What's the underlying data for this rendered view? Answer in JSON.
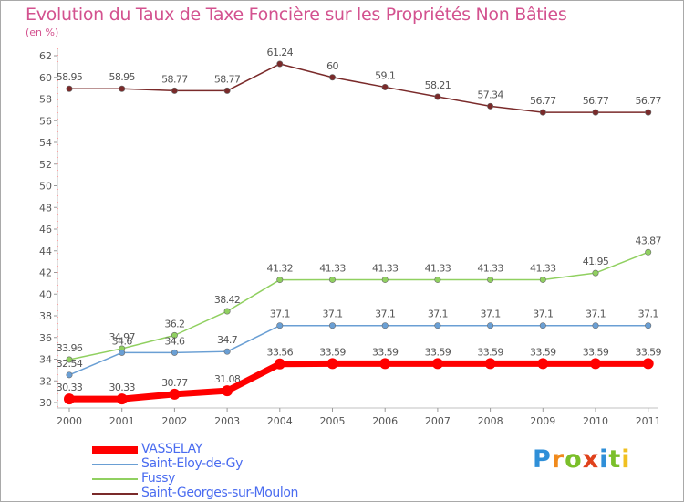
{
  "chart_data": {
    "type": "line",
    "title": "Evolution du Taux de Taxe Foncière sur les Propriétés Non Bâties",
    "subtitle": "(en %)",
    "xlabel": "",
    "ylabel": "",
    "categories": [
      "2000",
      "2001",
      "2002",
      "2003",
      "2004",
      "2005",
      "2006",
      "2007",
      "2008",
      "2009",
      "2010",
      "2011"
    ],
    "ylim": [
      30,
      62
    ],
    "yticks": [
      30,
      32,
      34,
      36,
      38,
      40,
      42,
      44,
      46,
      48,
      50,
      52,
      54,
      56,
      58,
      60,
      62
    ],
    "grid": false,
    "legend_position": "bottom-left",
    "series": [
      {
        "name": "VASSELAY",
        "color": "#ff0000",
        "values": [
          30.33,
          30.33,
          30.77,
          31.08,
          33.56,
          33.59,
          33.59,
          33.59,
          33.59,
          33.59,
          33.59,
          33.59
        ],
        "labels": [
          "30.33",
          "30.33",
          "30.77",
          "31.08",
          "33.56",
          "33.59",
          "33.59",
          "33.59",
          "33.59",
          "33.59",
          "33.59",
          "33.59"
        ]
      },
      {
        "name": "Saint-Eloy-de-Gy",
        "color": "#6a9fd4",
        "values": [
          32.54,
          34.6,
          34.6,
          34.7,
          37.1,
          37.1,
          37.1,
          37.1,
          37.1,
          37.1,
          37.1,
          37.1
        ],
        "labels": [
          "32.54",
          "34.6",
          "34.6",
          "34.7",
          "37.1",
          "37.1",
          "37.1",
          "37.1",
          "37.1",
          "37.1",
          "37.1",
          "37.1"
        ]
      },
      {
        "name": "Fussy",
        "color": "#90d060",
        "values": [
          33.96,
          34.97,
          36.2,
          38.42,
          41.32,
          41.33,
          41.33,
          41.33,
          41.33,
          41.33,
          41.95,
          43.87
        ],
        "labels": [
          "33.96",
          "34.97",
          "36.2",
          "38.42",
          "41.32",
          "41.33",
          "41.33",
          "41.33",
          "41.33",
          "41.33",
          "41.95",
          "43.87"
        ]
      },
      {
        "name": "Saint-Georges-sur-Moulon",
        "color": "#7a2a2a",
        "values": [
          58.95,
          58.95,
          58.77,
          58.77,
          61.24,
          60,
          59.1,
          58.21,
          57.34,
          56.77,
          56.77,
          56.77
        ],
        "labels": [
          "58.95",
          "58.95",
          "58.77",
          "58.77",
          "61.24",
          "60",
          "59.1",
          "58.21",
          "57.34",
          "56.77",
          "56.77",
          "56.77"
        ]
      }
    ]
  },
  "logo": {
    "text": "Proxiti",
    "letters": [
      "P",
      "r",
      "o",
      "x",
      "i",
      "t",
      "i"
    ]
  }
}
